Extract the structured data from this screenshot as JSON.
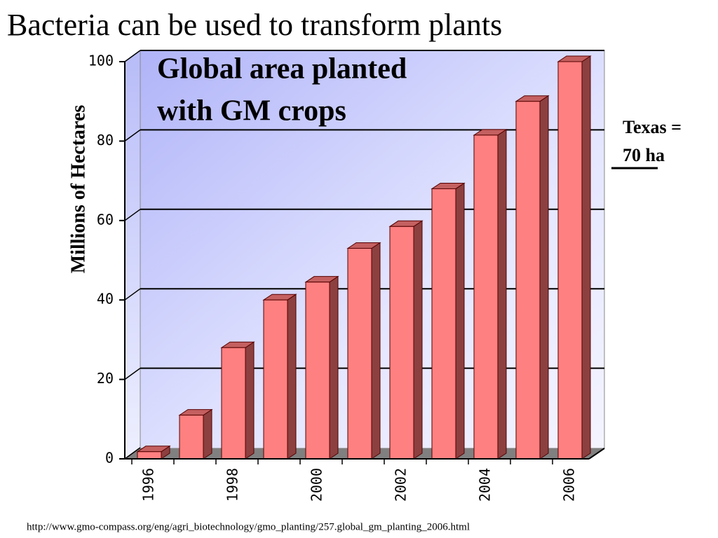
{
  "slide_title": "Bacteria can be used to transform plants",
  "source": "http://www.gmo-compass.org/eng/agri_biotechnology/gmo_planting/257.global_gm_planting_2006.html",
  "annotations": [
    "Texas =",
    "70 ha"
  ],
  "chart_data": {
    "type": "bar",
    "title": [
      "Global area planted",
      "with GM crops"
    ],
    "y_label": "Millions of Hectares",
    "categories": [
      "1996",
      null,
      "1998",
      null,
      "2000",
      null,
      "2002",
      null,
      "2004",
      null,
      "2006"
    ],
    "values": [
      1.8,
      11,
      28,
      40,
      44.5,
      53,
      58.5,
      68,
      81.5,
      90,
      100
    ],
    "color": "#ff8080",
    "ylim": [
      0,
      100
    ],
    "yticks": [
      0,
      20,
      40,
      60,
      80,
      100
    ],
    "grid": true
  }
}
